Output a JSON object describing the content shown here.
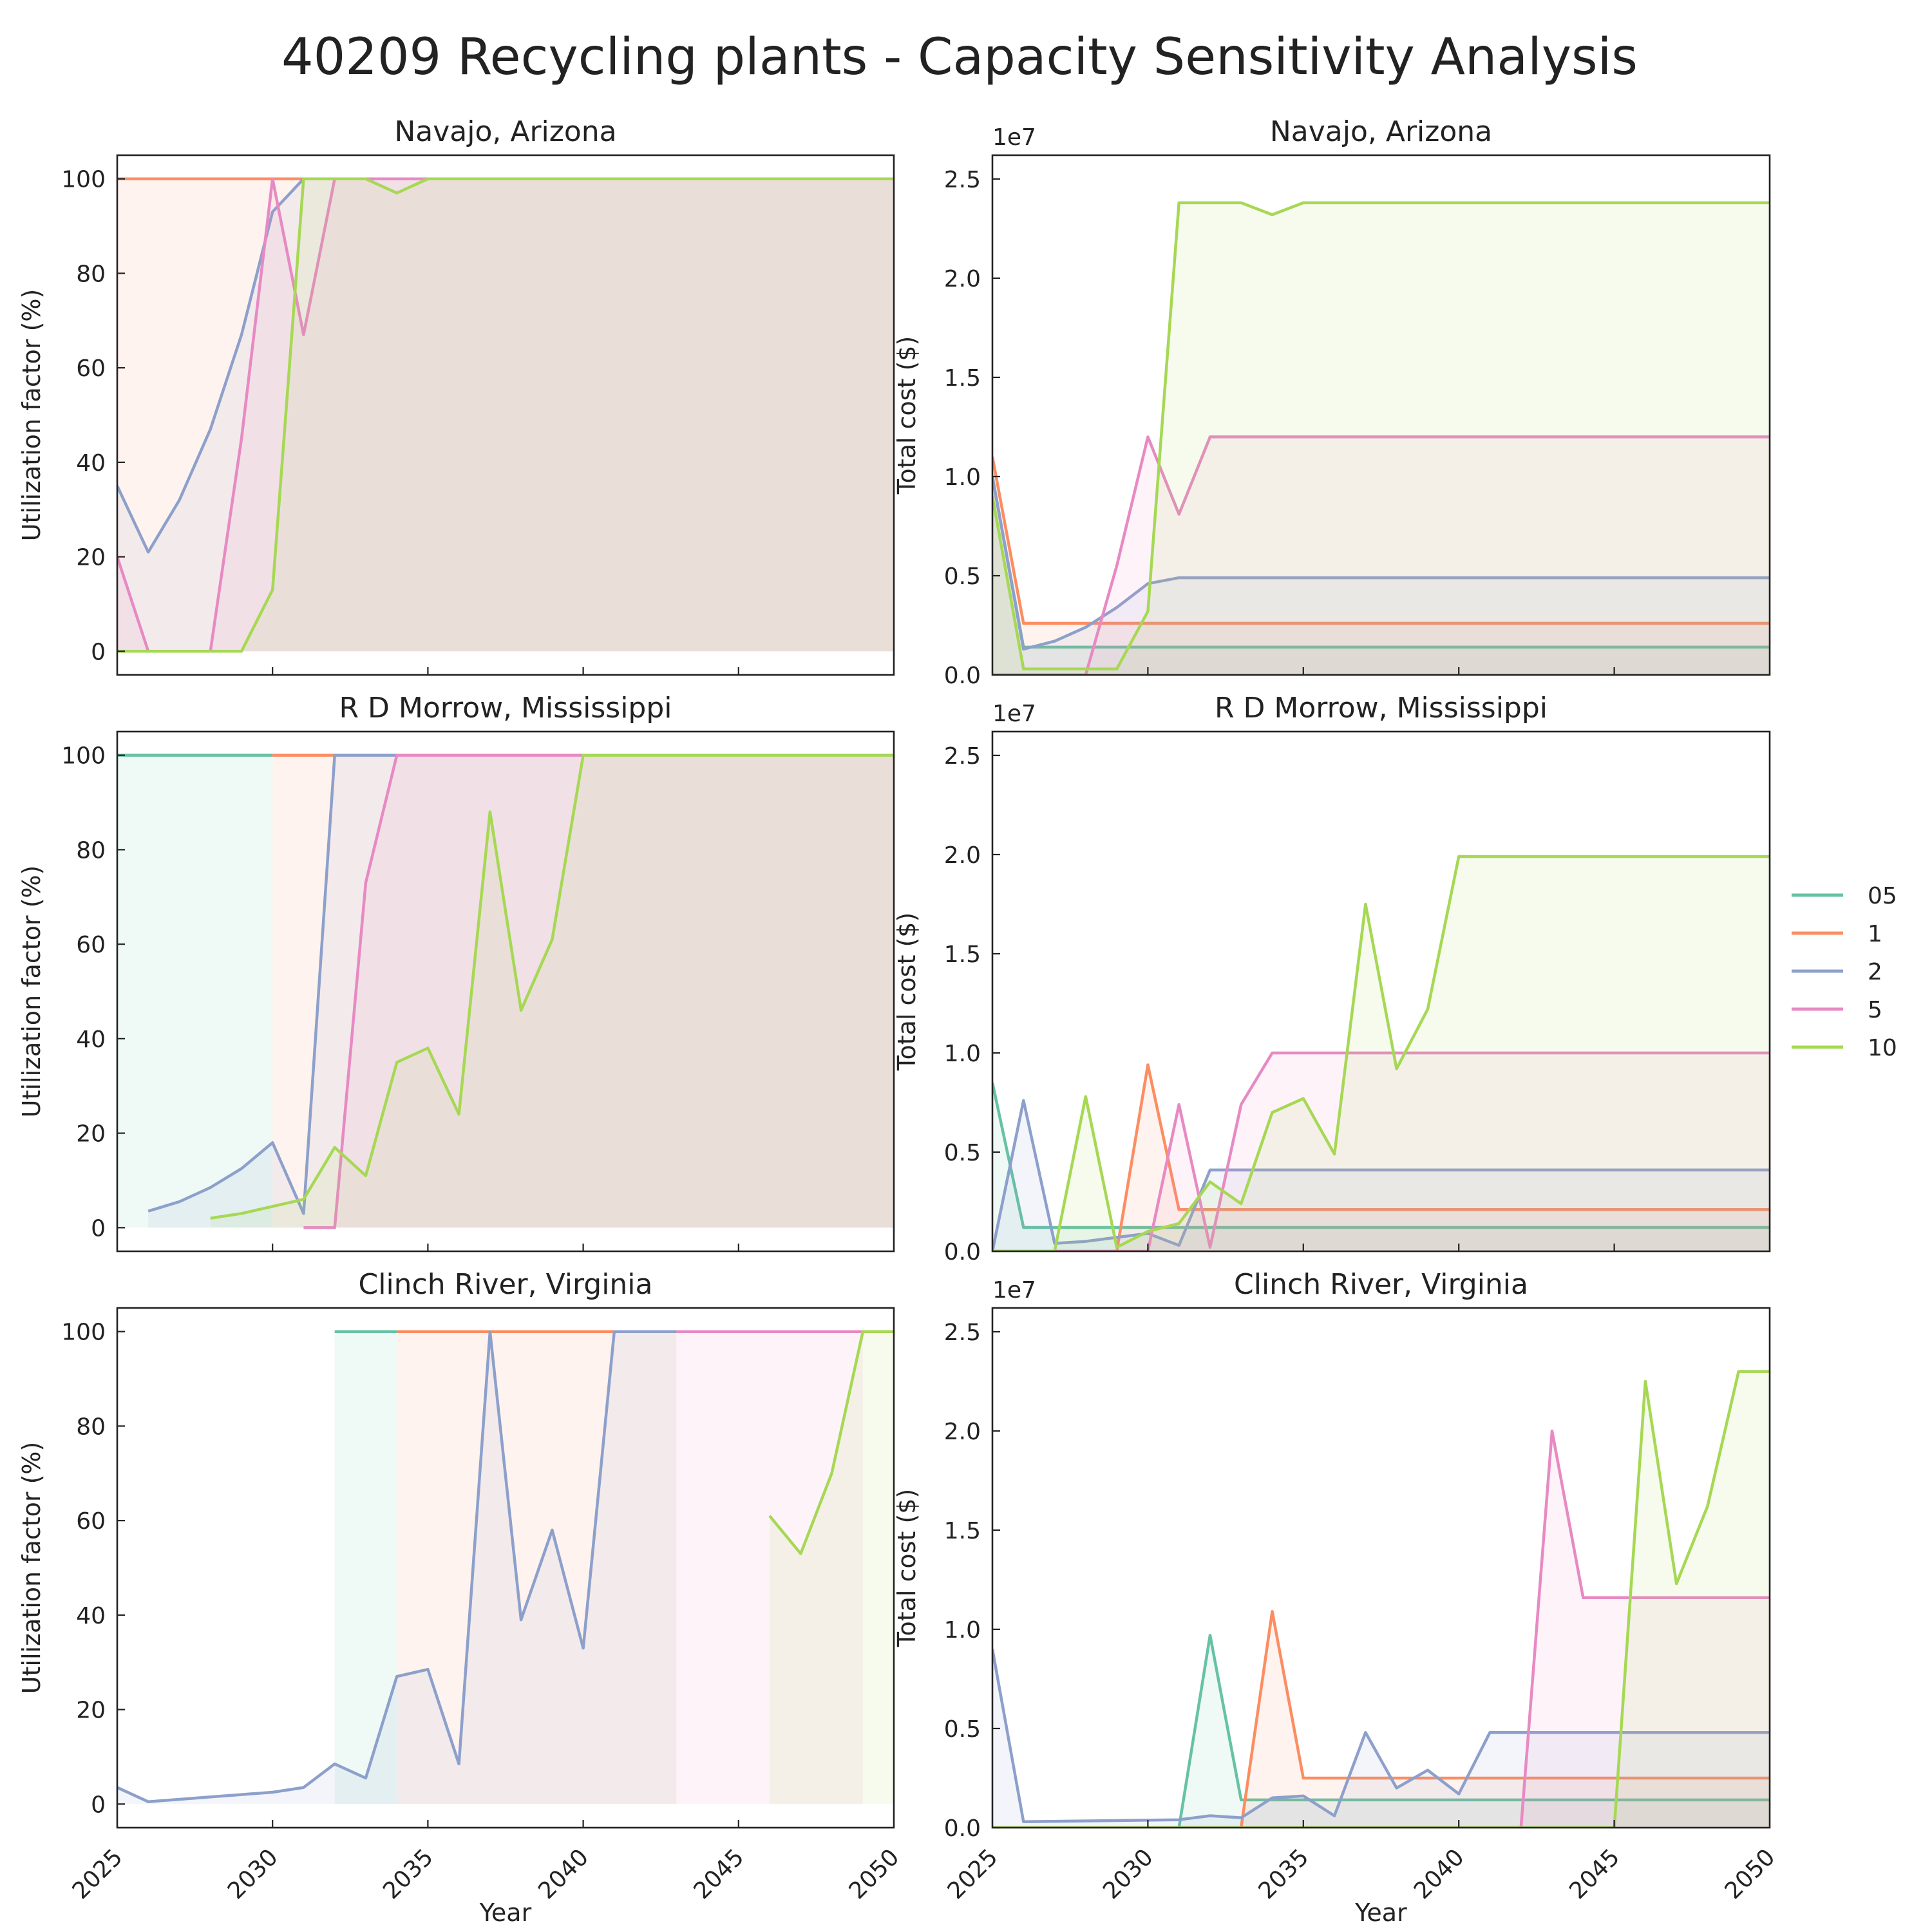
{
  "title": "40209 Recycling plants - Capacity Sensitivity Analysis",
  "colors": {
    "05": "#66c2a5",
    "1": "#fc8d62",
    "2": "#8da0cb",
    "5": "#e78ac3",
    "10": "#a6d854"
  },
  "legend": {
    "placement": "center-right",
    "entries": [
      "05",
      "1",
      "2",
      "5",
      "10"
    ]
  },
  "xaxis": {
    "label": "Year",
    "ticks": [
      "2025",
      "2030",
      "2035",
      "2040",
      "2045",
      "2050"
    ],
    "range": [
      2025,
      2050
    ]
  },
  "util_axis": {
    "label": "Utilization factor (%)",
    "ticks": [
      "0",
      "20",
      "40",
      "60",
      "80",
      "100"
    ],
    "range": [
      -5,
      105
    ]
  },
  "cost_axis": {
    "label": "Total cost ($)",
    "multiplier": "1e7",
    "ticks": [
      "0.0",
      "0.5",
      "1.0",
      "1.5",
      "2.0",
      "2.5"
    ],
    "range": [
      0,
      2.62
    ]
  },
  "chart_data": [
    {
      "type": "area",
      "title": "Navajo, Arizona",
      "metric": "utilization",
      "series": [
        {
          "name": "1",
          "x": [
            2025,
            2050
          ],
          "values": [
            100,
            100
          ]
        },
        {
          "name": "2",
          "x": [
            2025,
            2026,
            2027,
            2028,
            2029,
            2030,
            2031,
            2032,
            2033,
            2034,
            2035,
            2036,
            2037,
            2038,
            2039,
            2040,
            2041,
            2042,
            2043,
            2044,
            2045,
            2046,
            2047,
            2048,
            2049,
            2050
          ],
          "values": [
            35,
            21,
            32,
            47,
            67,
            93,
            100,
            100,
            100,
            100,
            100,
            100,
            100,
            100,
            100,
            100,
            100,
            100,
            100,
            100,
            100,
            100,
            100,
            100,
            100,
            100
          ]
        },
        {
          "name": "5",
          "x": [
            2025,
            2026,
            2027,
            2028,
            2029,
            2030,
            2031,
            2032,
            2033,
            2034,
            2035,
            2036,
            2037,
            2038,
            2039,
            2040,
            2041,
            2042,
            2043,
            2044,
            2045,
            2046,
            2047,
            2048,
            2049,
            2050
          ],
          "values": [
            20,
            0,
            0,
            0,
            45,
            100,
            67,
            100,
            100,
            100,
            100,
            100,
            100,
            100,
            100,
            100,
            100,
            100,
            100,
            100,
            100,
            100,
            100,
            100,
            100,
            100
          ]
        },
        {
          "name": "10",
          "x": [
            2025,
            2026,
            2027,
            2028,
            2029,
            2030,
            2031,
            2032,
            2033,
            2034,
            2035,
            2036,
            2037,
            2038,
            2039,
            2040,
            2041,
            2042,
            2043,
            2044,
            2045,
            2046,
            2047,
            2048,
            2049,
            2050
          ],
          "values": [
            0,
            0,
            0,
            0,
            0,
            13,
            100,
            100,
            100,
            97,
            100,
            100,
            100,
            100,
            100,
            100,
            100,
            100,
            100,
            100,
            100,
            100,
            100,
            100,
            100,
            100
          ]
        }
      ]
    },
    {
      "type": "area",
      "title": "Navajo, Arizona",
      "metric": "cost",
      "unit_multiplier": "1e7",
      "series": [
        {
          "name": "05",
          "x": [
            2025,
            2026,
            2050
          ],
          "values": [
            1.0,
            0.14,
            0.14
          ]
        },
        {
          "name": "1",
          "x": [
            2025,
            2026,
            2050
          ],
          "values": [
            1.1,
            0.26,
            0.26
          ]
        },
        {
          "name": "2",
          "x": [
            2025,
            2026,
            2027,
            2028,
            2029,
            2030,
            2031,
            2050
          ],
          "values": [
            1.0,
            0.13,
            0.17,
            0.24,
            0.34,
            0.46,
            0.49,
            0.49
          ]
        },
        {
          "name": "5",
          "x": [
            2025,
            2026,
            2027,
            2028,
            2029,
            2030,
            2031,
            2032,
            2050
          ],
          "values": [
            0,
            0,
            0,
            0,
            0.55,
            1.2,
            0.81,
            1.2,
            1.2
          ]
        },
        {
          "name": "10",
          "x": [
            2025,
            2026,
            2027,
            2028,
            2029,
            2030,
            2031,
            2032,
            2033,
            2034,
            2035,
            2050
          ],
          "values": [
            0.9,
            0.03,
            0.03,
            0.03,
            0.03,
            0.32,
            2.38,
            2.38,
            2.38,
            2.32,
            2.38,
            2.38
          ]
        }
      ]
    },
    {
      "type": "area",
      "title": "R D Morrow, Mississippi",
      "metric": "utilization",
      "series": [
        {
          "name": "05",
          "x": [
            2025,
            2030
          ],
          "values": [
            100,
            100
          ]
        },
        {
          "name": "1",
          "x": [
            2030,
            2050
          ],
          "values": [
            100,
            100
          ]
        },
        {
          "name": "2",
          "x": [
            2026,
            2027,
            2028,
            2029,
            2030,
            2031,
            2032,
            2033,
            2034,
            2035,
            2036,
            2037,
            2038,
            2039,
            2040,
            2041,
            2042,
            2043,
            2044,
            2045,
            2046,
            2047,
            2048,
            2049,
            2050
          ],
          "values": [
            3.5,
            5.5,
            8.5,
            12.5,
            18,
            3,
            100,
            100,
            100,
            100,
            100,
            100,
            100,
            100,
            100,
            100,
            100,
            100,
            100,
            100,
            100,
            100,
            100,
            100,
            100
          ]
        },
        {
          "name": "5",
          "x": [
            2031,
            2032,
            2033,
            2034,
            2035,
            2036,
            2037,
            2038,
            2039,
            2040,
            2041,
            2042,
            2043,
            2044,
            2045,
            2046,
            2047,
            2048,
            2049,
            2050
          ],
          "values": [
            0,
            0,
            73,
            100,
            100,
            100,
            100,
            100,
            100,
            100,
            100,
            100,
            100,
            100,
            100,
            100,
            100,
            100,
            100,
            100
          ]
        },
        {
          "name": "10",
          "x": [
            2028,
            2029,
            2030,
            2031,
            2032,
            2033,
            2034,
            2035,
            2036,
            2037,
            2038,
            2039,
            2040,
            2041,
            2042,
            2043,
            2044,
            2045,
            2046,
            2047,
            2048,
            2049,
            2050
          ],
          "values": [
            2,
            3,
            4.5,
            6,
            17,
            11,
            35,
            38,
            24,
            88,
            46,
            61,
            100,
            100,
            100,
            100,
            100,
            100,
            100,
            100,
            100,
            100,
            100
          ]
        }
      ]
    },
    {
      "type": "area",
      "title": "R D Morrow, Mississippi",
      "metric": "cost",
      "unit_multiplier": "1e7",
      "series": [
        {
          "name": "05",
          "x": [
            2025,
            2026,
            2050
          ],
          "values": [
            0.85,
            0.12,
            0.12
          ]
        },
        {
          "name": "1",
          "x": [
            2025,
            2026,
            2027,
            2028,
            2029,
            2030,
            2031,
            2050
          ],
          "values": [
            0,
            0,
            0,
            0,
            0,
            0.94,
            0.21,
            0.21
          ]
        },
        {
          "name": "2",
          "x": [
            2025,
            2026,
            2027,
            2028,
            2029,
            2030,
            2031,
            2032,
            2050
          ],
          "values": [
            0,
            0.76,
            0.04,
            0.05,
            0.07,
            0.09,
            0.03,
            0.41,
            0.41
          ]
        },
        {
          "name": "5",
          "x": [
            2025,
            2026,
            2027,
            2028,
            2029,
            2030,
            2031,
            2032,
            2033,
            2034,
            2050
          ],
          "values": [
            0,
            0,
            0,
            0,
            0,
            0,
            0.74,
            0.02,
            0.74,
            1.0,
            1.0
          ]
        },
        {
          "name": "10",
          "x": [
            2025,
            2026,
            2027,
            2028,
            2029,
            2030,
            2031,
            2032,
            2033,
            2034,
            2035,
            2036,
            2037,
            2038,
            2039,
            2040,
            2050
          ],
          "values": [
            0,
            0,
            0,
            0.78,
            0.02,
            0.1,
            0.14,
            0.35,
            0.24,
            0.7,
            0.77,
            0.49,
            1.75,
            0.92,
            1.22,
            1.99,
            1.99
          ]
        }
      ]
    },
    {
      "type": "area",
      "title": "Clinch River, Virginia",
      "metric": "utilization",
      "series": [
        {
          "name": "05",
          "x": [
            2032,
            2034
          ],
          "values": [
            100,
            100
          ]
        },
        {
          "name": "1",
          "x": [
            2034,
            2043
          ],
          "values": [
            100,
            100
          ]
        },
        {
          "name": "2",
          "x": [
            2025,
            2026,
            2027,
            2028,
            2029,
            2030,
            2031,
            2032,
            2033,
            2034,
            2035,
            2036,
            2037,
            2038,
            2039,
            2040,
            2041,
            2042,
            2043
          ],
          "values": [
            3.5,
            0.5,
            1,
            1.5,
            2,
            2.5,
            3.5,
            8.5,
            5.5,
            27,
            28.5,
            8.5,
            100,
            39,
            58,
            33,
            100,
            100,
            100
          ]
        },
        {
          "name": "5",
          "x": [
            2043,
            2049
          ],
          "values": [
            100,
            100
          ]
        },
        {
          "name": "10",
          "x": [
            2046,
            2047,
            2048,
            2049,
            2050
          ],
          "values": [
            61,
            53,
            70,
            100,
            100
          ]
        }
      ]
    },
    {
      "type": "area",
      "title": "Clinch River, Virginia",
      "metric": "cost",
      "unit_multiplier": "1e7",
      "series": [
        {
          "name": "05",
          "x": [
            2025,
            2031,
            2032,
            2033,
            2050
          ],
          "values": [
            0,
            0,
            0.97,
            0.14,
            0.14
          ]
        },
        {
          "name": "1",
          "x": [
            2025,
            2033,
            2034,
            2035,
            2050
          ],
          "values": [
            0,
            0,
            1.09,
            0.25,
            0.25
          ]
        },
        {
          "name": "2",
          "x": [
            2025,
            2026,
            2031,
            2032,
            2033,
            2034,
            2035,
            2036,
            2037,
            2038,
            2039,
            2040,
            2041,
            2050
          ],
          "values": [
            0.9,
            0.03,
            0.04,
            0.06,
            0.05,
            0.15,
            0.16,
            0.06,
            0.48,
            0.2,
            0.29,
            0.17,
            0.48,
            0.48
          ]
        },
        {
          "name": "5",
          "x": [
            2025,
            2042,
            2043,
            2044,
            2050
          ],
          "values": [
            0,
            0,
            2.0,
            1.16,
            1.16
          ]
        },
        {
          "name": "10",
          "x": [
            2025,
            2045,
            2046,
            2047,
            2048,
            2049,
            2050
          ],
          "values": [
            0,
            0,
            2.25,
            1.23,
            1.62,
            2.3,
            2.3
          ]
        }
      ]
    }
  ]
}
